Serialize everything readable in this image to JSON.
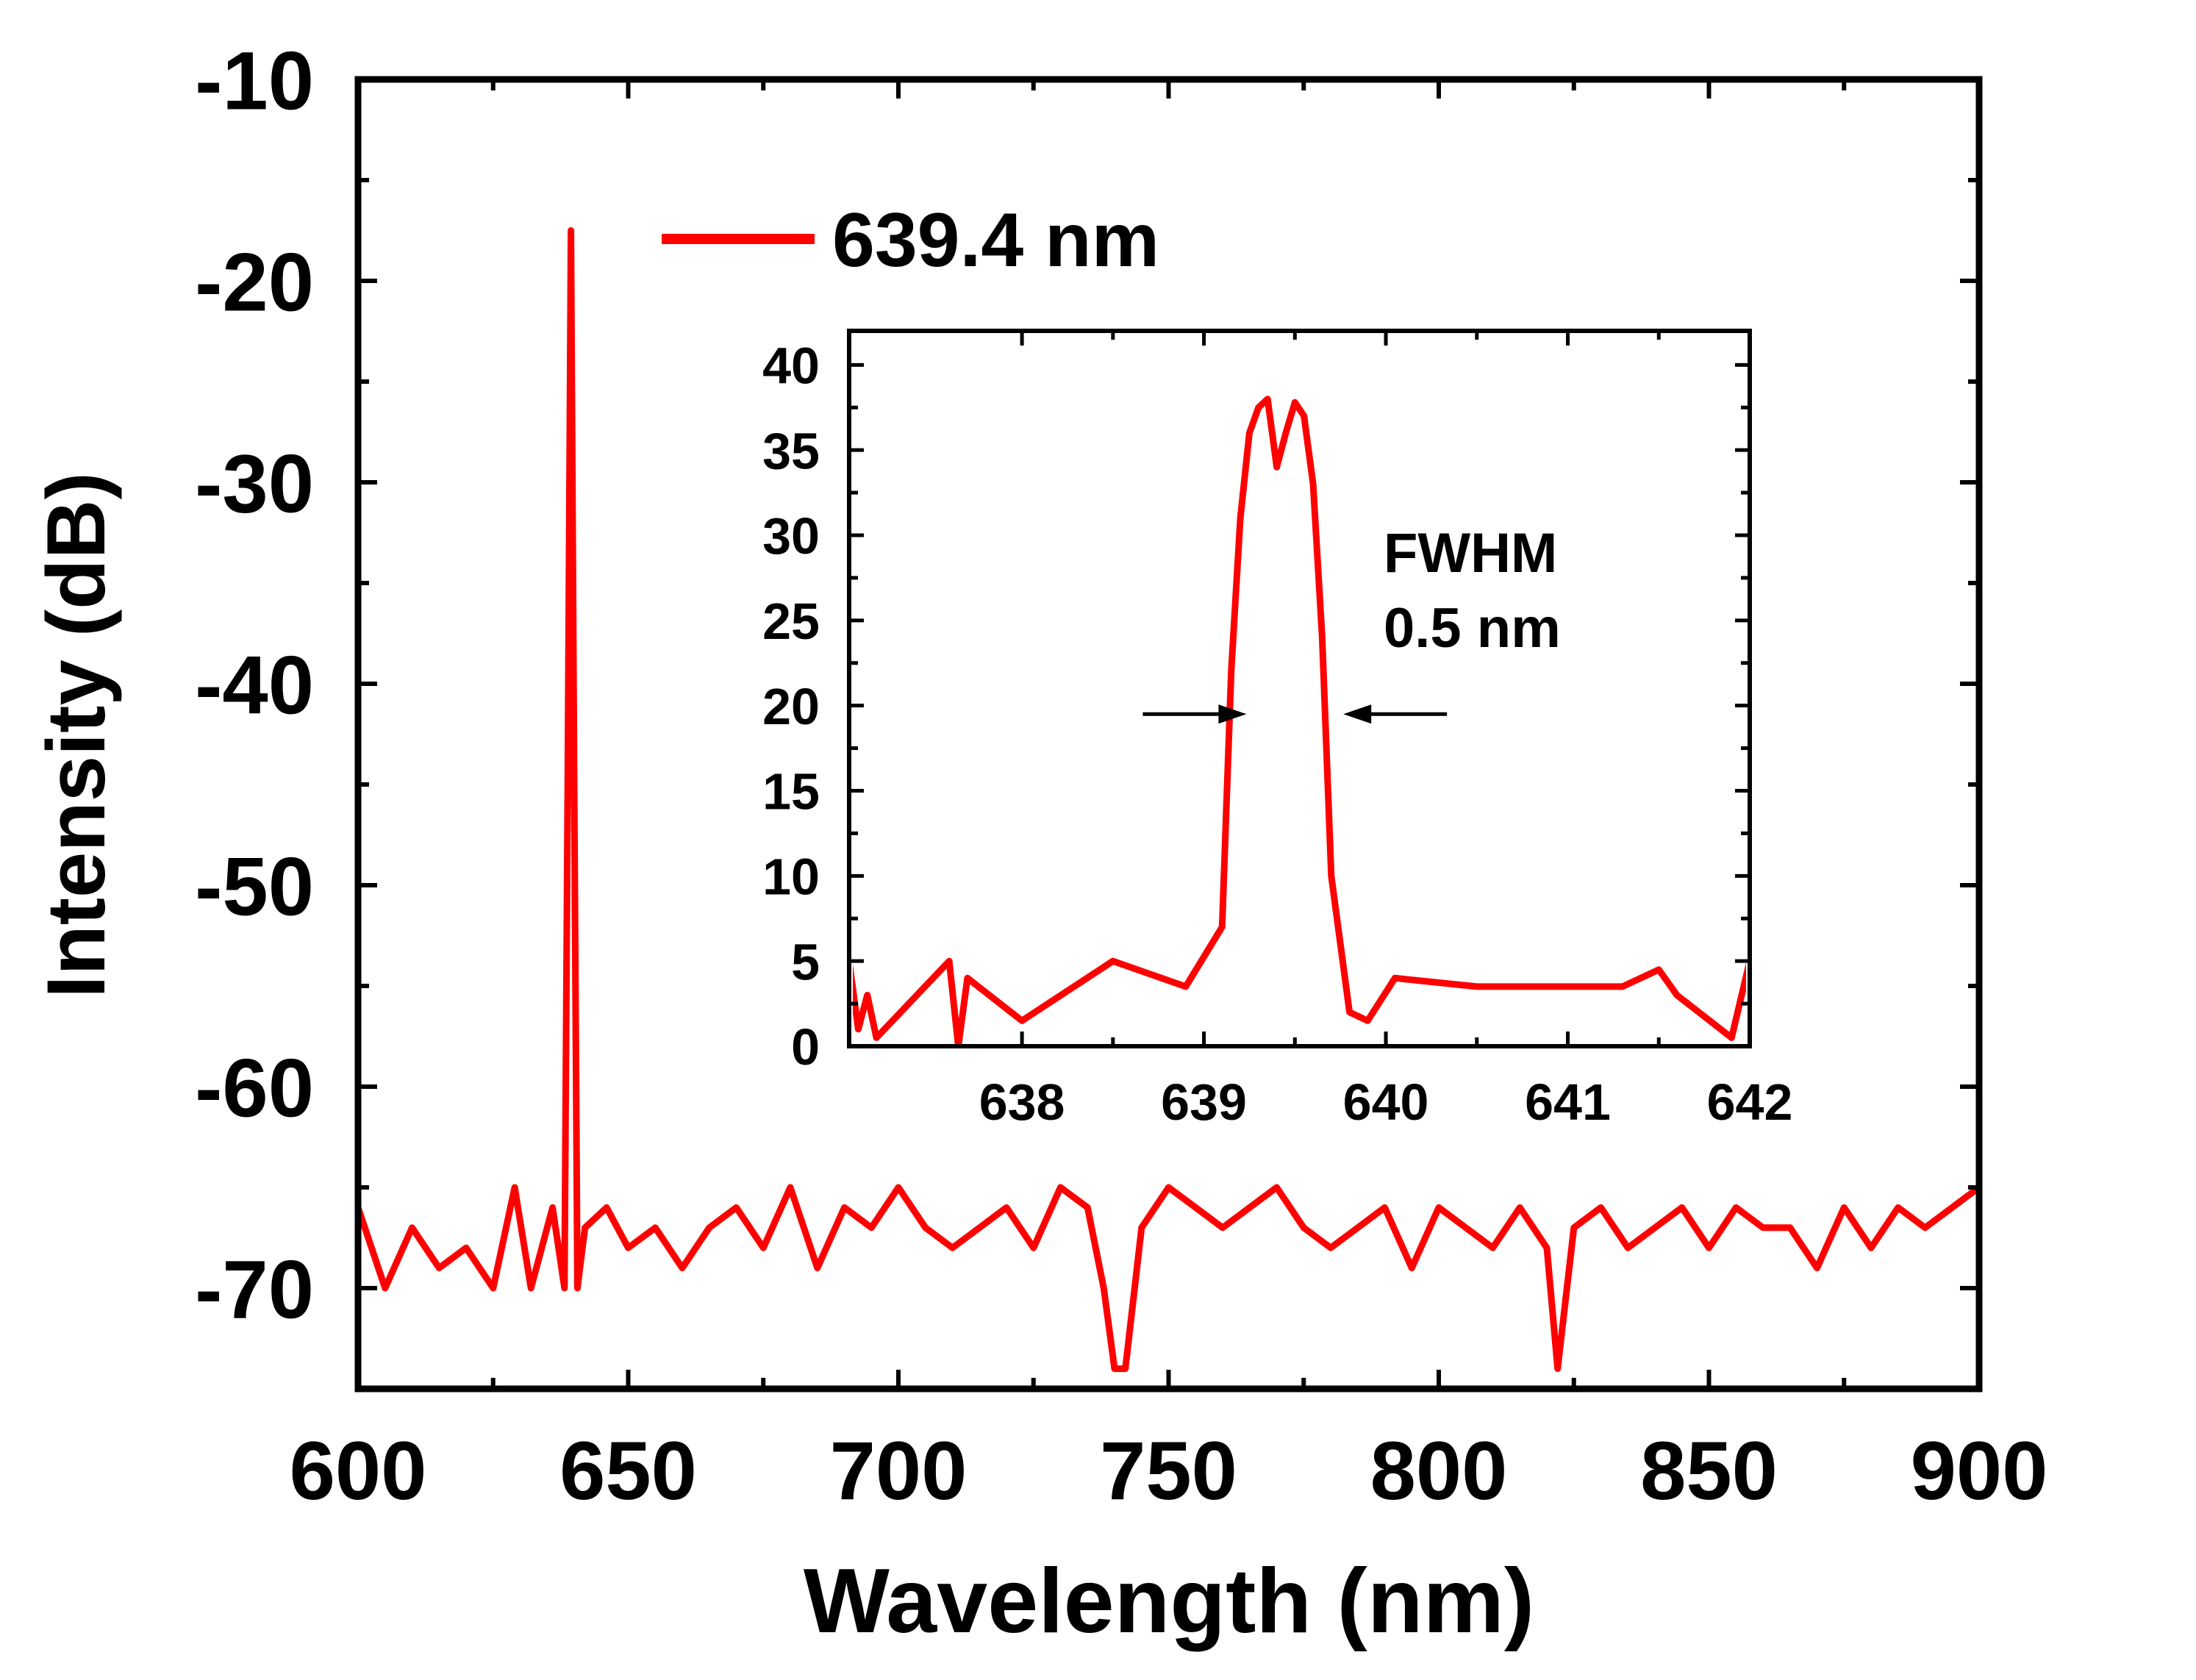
{
  "colors": {
    "series": "#ff0000",
    "axis": "#000000",
    "background": "#ffffff"
  },
  "chart_data": [
    {
      "type": "line",
      "xlabel": "Wavelength (nm)",
      "ylabel": "Intensity (dB)",
      "xlim": [
        600,
        900
      ],
      "ylim": [
        -75,
        -10
      ],
      "xticks": [
        600,
        650,
        700,
        750,
        800,
        850,
        900
      ],
      "xtick_labels": [
        "600",
        "650",
        "700",
        "750",
        "800",
        "850",
        "900"
      ],
      "yticks": [
        -70,
        -60,
        -50,
        -40,
        -30,
        -20,
        -10
      ],
      "ytick_labels": [
        "-70",
        "-60",
        "-50",
        "-40",
        "-30",
        "-20",
        "-10"
      ],
      "legend": {
        "entries": [
          "639.4 nm"
        ],
        "placement": "top-center"
      },
      "grid": false,
      "series": [
        {
          "name": "639.4 nm",
          "x": [
            600,
            605,
            610,
            615,
            620,
            625,
            629,
            632,
            636,
            638.2,
            638.8,
            639.4,
            640.0,
            640.6,
            642,
            646,
            650,
            655,
            660,
            665,
            670,
            675,
            680,
            685,
            690,
            695,
            700,
            705,
            710,
            715,
            720,
            725,
            730,
            735,
            738,
            740,
            742,
            745,
            750,
            755,
            760,
            765,
            770,
            775,
            780,
            785,
            790,
            795,
            800,
            805,
            810,
            815,
            820,
            822,
            825,
            830,
            835,
            840,
            845,
            850,
            855,
            860,
            865,
            870,
            875,
            880,
            885,
            890,
            895,
            900
          ],
          "y": [
            -66,
            -70,
            -67,
            -69,
            -68,
            -70,
            -65,
            -70,
            -66,
            -70,
            -45,
            -17.5,
            -45,
            -70,
            -67,
            -66,
            -68,
            -67,
            -69,
            -67,
            -66,
            -68,
            -65,
            -69,
            -66,
            -67,
            -65,
            -67,
            -68,
            -67,
            -66,
            -68,
            -65,
            -66,
            -70,
            -74,
            -74,
            -67,
            -65,
            -66,
            -67,
            -66,
            -65,
            -67,
            -68,
            -67,
            -66,
            -69,
            -66,
            -67,
            -68,
            -66,
            -68,
            -74,
            -67,
            -66,
            -68,
            -67,
            -66,
            -68,
            -66,
            -67,
            -67,
            -69,
            -66,
            -68,
            -66,
            -67,
            -66,
            -65
          ]
        }
      ]
    },
    {
      "type": "line",
      "annotation": [
        "FWHM",
        "0.5 nm"
      ],
      "xlim": [
        637.05,
        642
      ],
      "ylim": [
        0,
        42
      ],
      "xticks": [
        638,
        639,
        640,
        641,
        642
      ],
      "xtick_labels": [
        "638",
        "639",
        "640",
        "641",
        "642"
      ],
      "yticks": [
        0,
        5,
        10,
        15,
        20,
        25,
        30,
        35,
        40
      ],
      "ytick_labels": [
        "0",
        "5",
        "10",
        "15",
        "20",
        "25",
        "30",
        "35",
        "40"
      ],
      "grid": false,
      "series": [
        {
          "x": [
            637.05,
            637.1,
            637.15,
            637.2,
            637.6,
            637.65,
            637.7,
            638.0,
            638.5,
            638.9,
            639.1,
            639.15,
            639.2,
            639.25,
            639.3,
            639.35,
            639.4,
            639.45,
            639.5,
            639.55,
            639.6,
            639.65,
            639.7,
            639.75,
            639.8,
            639.9,
            640.05,
            640.5,
            641.3,
            641.5,
            641.6,
            641.9,
            642.0
          ],
          "y": [
            5,
            1,
            3,
            0.5,
            5,
            0,
            4,
            1.5,
            5,
            3.5,
            7,
            22,
            31,
            36,
            37.5,
            38,
            34,
            36,
            37.8,
            37,
            33,
            24,
            10,
            6,
            2,
            1.5,
            4,
            3.5,
            3.5,
            4.5,
            3,
            0.5,
            5
          ]
        }
      ],
      "fwhm_markers": {
        "left": 639.25,
        "right": 639.75,
        "level": 19.5
      }
    }
  ]
}
